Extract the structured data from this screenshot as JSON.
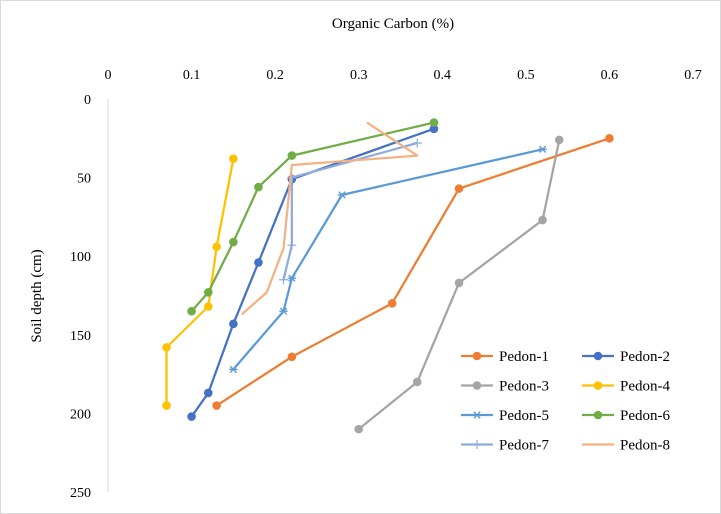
{
  "chart_data": {
    "type": "line",
    "title": "",
    "xlabel": "Organic Carbon (%)",
    "ylabel": "Soil depth (cm)",
    "x_axis_position": "top",
    "y_axis_reversed": true,
    "xlim": [
      0,
      0.7
    ],
    "ylim": [
      0,
      250
    ],
    "x_ticks": [
      "0",
      "0.1",
      "0.2",
      "0.3",
      "0.4",
      "0.5",
      "0.6",
      "0.7"
    ],
    "y_ticks": [
      "0",
      "50",
      "100",
      "150",
      "200",
      "250"
    ],
    "grid": false,
    "legend_position": "bottom-right",
    "series": [
      {
        "name": "Pedon-1",
        "color": "#ED7D31",
        "marker": "circle",
        "points": [
          [
            0.6,
            25
          ],
          [
            0.42,
            57
          ],
          [
            0.34,
            130
          ],
          [
            0.22,
            164
          ],
          [
            0.13,
            195
          ]
        ]
      },
      {
        "name": "Pedon-2",
        "color": "#4472C4",
        "marker": "circle",
        "points": [
          [
            0.39,
            19
          ],
          [
            0.22,
            51
          ],
          [
            0.18,
            104
          ],
          [
            0.15,
            143
          ],
          [
            0.12,
            187
          ],
          [
            0.1,
            202
          ]
        ]
      },
      {
        "name": "Pedon-3",
        "color": "#A5A5A5",
        "marker": "circle",
        "points": [
          [
            0.54,
            26
          ],
          [
            0.52,
            77
          ],
          [
            0.42,
            117
          ],
          [
            0.37,
            180
          ],
          [
            0.3,
            210
          ]
        ]
      },
      {
        "name": "Pedon-4",
        "color": "#FFC000",
        "marker": "circle",
        "points": [
          [
            0.15,
            38
          ],
          [
            0.13,
            94
          ],
          [
            0.12,
            132
          ],
          [
            0.07,
            158
          ],
          [
            0.07,
            195
          ]
        ]
      },
      {
        "name": "Pedon-5",
        "color": "#5B9BD5",
        "marker": "star",
        "points": [
          [
            0.52,
            32
          ],
          [
            0.28,
            61
          ],
          [
            0.22,
            114
          ],
          [
            0.21,
            135
          ],
          [
            0.15,
            172
          ]
        ]
      },
      {
        "name": "Pedon-6",
        "color": "#70AD47",
        "marker": "circle",
        "points": [
          [
            0.39,
            15
          ],
          [
            0.22,
            36
          ],
          [
            0.18,
            56
          ],
          [
            0.15,
            91
          ],
          [
            0.12,
            123
          ],
          [
            0.1,
            135
          ]
        ]
      },
      {
        "name": "Pedon-7",
        "color": "#8FAADC",
        "marker": "plus",
        "points": [
          [
            0.37,
            28
          ],
          [
            0.22,
            50
          ],
          [
            0.22,
            93
          ],
          [
            0.21,
            115
          ]
        ]
      },
      {
        "name": "Pedon-8",
        "color": "#F4B183",
        "marker": "none",
        "points": [
          [
            0.31,
            15
          ],
          [
            0.37,
            36
          ],
          [
            0.22,
            42
          ],
          [
            0.21,
            95
          ],
          [
            0.19,
            123
          ],
          [
            0.16,
            137
          ]
        ]
      }
    ]
  }
}
